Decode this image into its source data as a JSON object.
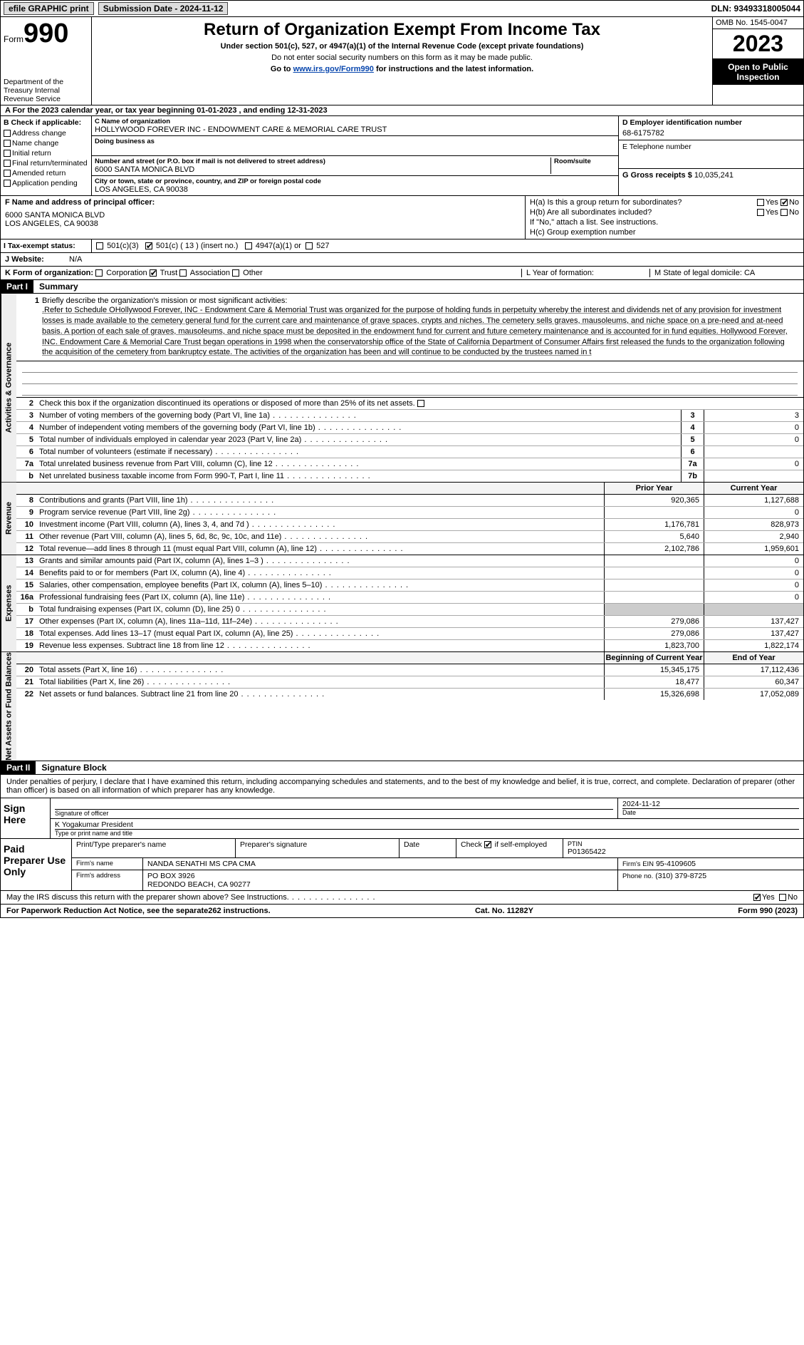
{
  "colors": {
    "text": "#000000",
    "bg": "#ffffff",
    "header_black": "#000000",
    "link": "#0645ad",
    "shaded": "#cccccc",
    "vtab_bg": "#eeeeee"
  },
  "top_bar": {
    "efile": "efile GRAPHIC print",
    "submission_label": "Submission Date - 2024-11-12",
    "dln": "DLN: 93493318005044"
  },
  "header": {
    "form_label": "Form",
    "form_number": "990",
    "dept": "Department of the Treasury Internal Revenue Service",
    "title": "Return of Organization Exempt From Income Tax",
    "sub1": "Under section 501(c), 527, or 4947(a)(1) of the Internal Revenue Code (except private foundations)",
    "sub2": "Do not enter social security numbers on this form as it may be made public.",
    "sub3_pre": "Go to ",
    "sub3_link": "www.irs.gov/Form990",
    "sub3_post": " for instructions and the latest information.",
    "omb": "OMB No. 1545-0047",
    "year": "2023",
    "inspection": "Open to Public Inspection"
  },
  "row_a": "A For the 2023 calendar year, or tax year beginning 01-01-2023   , and ending 12-31-2023",
  "col_b": {
    "title": "B Check if applicable:",
    "items": [
      "Address change",
      "Name change",
      "Initial return",
      "Final return/terminated",
      "Amended return",
      "Application pending"
    ]
  },
  "col_c": {
    "name_lbl": "C Name of organization",
    "name": "HOLLYWOOD FOREVER INC - ENDOWMENT CARE & MEMORIAL CARE TRUST",
    "dba_lbl": "Doing business as",
    "street_lbl": "Number and street (or P.O. box if mail is not delivered to street address)",
    "street": "6000 SANTA MONICA BLVD",
    "room_lbl": "Room/suite",
    "city_lbl": "City or town, state or province, country, and ZIP or foreign postal code",
    "city": "LOS ANGELES, CA  90038"
  },
  "col_d": {
    "ein_lbl": "D Employer identification number",
    "ein": "68-6175782",
    "phone_lbl": "E Telephone number",
    "gross_lbl": "G Gross receipts $",
    "gross": "10,035,241"
  },
  "f_block": {
    "lbl": "F Name and address of principal officer:",
    "line1": "6000 SANTA MONICA BLVD",
    "line2": "LOS ANGELES, CA  90038"
  },
  "h_block": {
    "ha": "H(a)  Is this a group return for subordinates?",
    "hb": "H(b)  Are all subordinates included?",
    "hb_note": "If \"No,\" attach a list. See instructions.",
    "hc": "H(c)  Group exemption number",
    "yes": "Yes",
    "no": "No"
  },
  "tax_status": {
    "lbl": "I  Tax-exempt status:",
    "o1": "501(c)(3)",
    "o2": "501(c) ( 13 ) (insert no.)",
    "o3": "4947(a)(1) or",
    "o4": "527"
  },
  "j_row": {
    "lbl": "J  Website:",
    "val": "N/A"
  },
  "k_row": {
    "lbl": "K Form of organization:",
    "opts": [
      "Corporation",
      "Trust",
      "Association",
      "Other"
    ],
    "l_lbl": "L Year of formation:",
    "m_lbl": "M State of legal domicile: CA"
  },
  "part1": {
    "hdr": "Part I",
    "title": "Summary",
    "line1_lbl": "1",
    "line1_desc": "Briefly describe the organization's mission or most significant activities:",
    "mission": ".Refer to Schedule OHollywood Forever, INC - Endowment Care & Memorial Trust was organized for the purpose of holding funds in perpetuity whereby the interest and dividends net of any provision for investment losses is made available to the cemetery general fund for the current care and maintenance of grave spaces, crypts and niches. The cemetery sells graves, mausoleums, and niche space on a pre-need and at-need basis. A portion of each sale of graves, mausoleums, and niche space must be deposited in the endowment fund for current and future cemetery maintenance and is accounted for in fund equities. Hollywood Forever, INC. Endowment Care & Memorial Care Trust began operations in 1998 when the conservatorship office of the State of California Department of Consumer Affairs first released the funds to the organization following the acquisition of the cemetery from bankruptcy estate. The activities of the organization has been and will continue to be conducted by the trustees named in t",
    "line2": "Check this box   if the organization discontinued its operations or disposed of more than 25% of its net assets.",
    "rows": [
      {
        "n": "3",
        "d": "Number of voting members of the governing body (Part VI, line 1a)",
        "box": "3",
        "v": "3"
      },
      {
        "n": "4",
        "d": "Number of independent voting members of the governing body (Part VI, line 1b)",
        "box": "4",
        "v": "0"
      },
      {
        "n": "5",
        "d": "Total number of individuals employed in calendar year 2023 (Part V, line 2a)",
        "box": "5",
        "v": "0"
      },
      {
        "n": "6",
        "d": "Total number of volunteers (estimate if necessary)",
        "box": "6",
        "v": ""
      },
      {
        "n": "7a",
        "d": "Total unrelated business revenue from Part VIII, column (C), line 12",
        "box": "7a",
        "v": "0"
      },
      {
        "n": "b",
        "d": "Net unrelated business taxable income from Form 990-T, Part I, line 11",
        "box": "7b",
        "v": ""
      }
    ]
  },
  "revenue": {
    "tab": "Revenue",
    "hdr_prior": "Prior Year",
    "hdr_curr": "Current Year",
    "rows": [
      {
        "n": "8",
        "d": "Contributions and grants (Part VIII, line 1h)",
        "p": "920,365",
        "c": "1,127,688"
      },
      {
        "n": "9",
        "d": "Program service revenue (Part VIII, line 2g)",
        "p": "",
        "c": "0"
      },
      {
        "n": "10",
        "d": "Investment income (Part VIII, column (A), lines 3, 4, and 7d )",
        "p": "1,176,781",
        "c": "828,973"
      },
      {
        "n": "11",
        "d": "Other revenue (Part VIII, column (A), lines 5, 6d, 8c, 9c, 10c, and 11e)",
        "p": "5,640",
        "c": "2,940"
      },
      {
        "n": "12",
        "d": "Total revenue—add lines 8 through 11 (must equal Part VIII, column (A), line 12)",
        "p": "2,102,786",
        "c": "1,959,601"
      }
    ]
  },
  "expenses": {
    "tab": "Expenses",
    "rows": [
      {
        "n": "13",
        "d": "Grants and similar amounts paid (Part IX, column (A), lines 1–3 )",
        "p": "",
        "c": "0"
      },
      {
        "n": "14",
        "d": "Benefits paid to or for members (Part IX, column (A), line 4)",
        "p": "",
        "c": "0"
      },
      {
        "n": "15",
        "d": "Salaries, other compensation, employee benefits (Part IX, column (A), lines 5–10)",
        "p": "",
        "c": "0"
      },
      {
        "n": "16a",
        "d": "Professional fundraising fees (Part IX, column (A), line 11e)",
        "p": "",
        "c": "0"
      },
      {
        "n": "b",
        "d": "Total fundraising expenses (Part IX, column (D), line 25) 0",
        "p": "SHADE",
        "c": "SHADE"
      },
      {
        "n": "17",
        "d": "Other expenses (Part IX, column (A), lines 11a–11d, 11f–24e)",
        "p": "279,086",
        "c": "137,427"
      },
      {
        "n": "18",
        "d": "Total expenses. Add lines 13–17 (must equal Part IX, column (A), line 25)",
        "p": "279,086",
        "c": "137,427"
      },
      {
        "n": "19",
        "d": "Revenue less expenses. Subtract line 18 from line 12",
        "p": "1,823,700",
        "c": "1,822,174"
      }
    ]
  },
  "netassets": {
    "tab": "Net Assets or Fund Balances",
    "hdr_beg": "Beginning of Current Year",
    "hdr_end": "End of Year",
    "rows": [
      {
        "n": "20",
        "d": "Total assets (Part X, line 16)",
        "p": "15,345,175",
        "c": "17,112,436"
      },
      {
        "n": "21",
        "d": "Total liabilities (Part X, line 26)",
        "p": "18,477",
        "c": "60,347"
      },
      {
        "n": "22",
        "d": "Net assets or fund balances. Subtract line 21 from line 20",
        "p": "15,326,698",
        "c": "17,052,089"
      }
    ]
  },
  "part2": {
    "hdr": "Part II",
    "title": "Signature Block",
    "intro": "Under penalties of perjury, I declare that I have examined this return, including accompanying schedules and statements, and to the best of my knowledge and belief, it is true, correct, and complete. Declaration of preparer (other than officer) is based on all information of which preparer has any knowledge."
  },
  "sign": {
    "left": "Sign Here",
    "sig_lbl": "Signature of officer",
    "date_lbl": "Date",
    "date": "2024-11-12",
    "name": "K Yogakumar  President",
    "name_lbl": "Type or print name and title"
  },
  "prep": {
    "left": "Paid Preparer Use Only",
    "r1": {
      "c1": "Print/Type preparer's name",
      "c2": "Preparer's signature",
      "c3": "Date",
      "c4_lbl": "Check",
      "c4_txt": "if self-employed",
      "c5_lbl": "PTIN",
      "c5": "P01365422"
    },
    "r2": {
      "lbl": "Firm's name",
      "val": "NANDA SENATHI MS CPA CMA",
      "ein_lbl": "Firm's EIN",
      "ein": "95-4109605"
    },
    "r3": {
      "lbl": "Firm's address",
      "val1": "PO BOX 3926",
      "val2": "REDONDO BEACH, CA  90277",
      "ph_lbl": "Phone no.",
      "ph": "(310) 379-8725"
    }
  },
  "discuss": {
    "q": "May the IRS discuss this return with the preparer shown above? See Instructions.",
    "yes": "Yes",
    "no": "No"
  },
  "footer": {
    "left": "For Paperwork Reduction Act Notice, see the separate262 instructions.",
    "mid": "Cat. No. 11282Y",
    "right": "Form 990 (2023)"
  }
}
